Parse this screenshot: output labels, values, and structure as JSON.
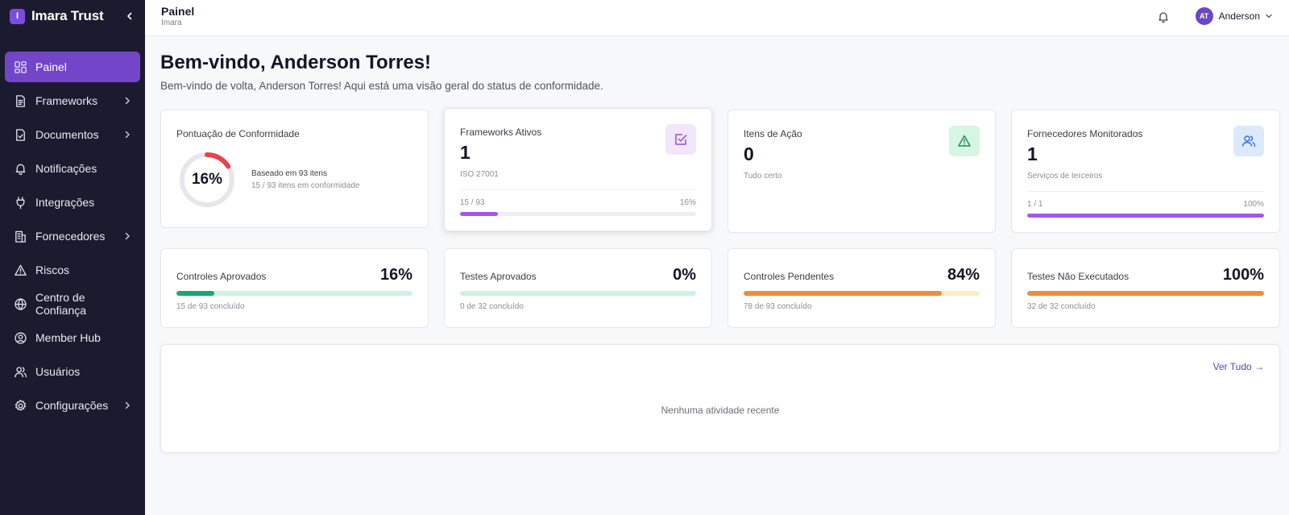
{
  "app": {
    "logo_letter": "I",
    "name": "Imara Trust"
  },
  "sidebar": {
    "items": [
      {
        "label": "Painel",
        "icon": "dashboard-icon",
        "active": true,
        "has_submenu": false
      },
      {
        "label": "Frameworks",
        "icon": "file-text-icon",
        "active": false,
        "has_submenu": true
      },
      {
        "label": "Documentos",
        "icon": "file-check-icon",
        "active": false,
        "has_submenu": true
      },
      {
        "label": "Notificações",
        "icon": "bell-icon",
        "active": false,
        "has_submenu": false
      },
      {
        "label": "Integrações",
        "icon": "plug-icon",
        "active": false,
        "has_submenu": false
      },
      {
        "label": "Fornecedores",
        "icon": "building-icon",
        "active": false,
        "has_submenu": true
      },
      {
        "label": "Riscos",
        "icon": "alert-triangle-icon",
        "active": false,
        "has_submenu": false
      },
      {
        "label": "Centro de Confiança",
        "icon": "globe-icon",
        "active": false,
        "has_submenu": false
      },
      {
        "label": "Member Hub",
        "icon": "user-circle-icon",
        "active": false,
        "has_submenu": false
      },
      {
        "label": "Usuários",
        "icon": "users-icon",
        "active": false,
        "has_submenu": false
      },
      {
        "label": "Configurações",
        "icon": "gear-icon",
        "active": false,
        "has_submenu": true
      }
    ]
  },
  "header": {
    "title": "Painel",
    "subtitle": "Imara",
    "user_initials": "AT",
    "user_name": "Anderson"
  },
  "welcome": {
    "title": "Bem-vindo, Anderson Torres!",
    "subtitle": "Bem-vindo de volta, Anderson Torres! Aqui está uma visão geral do status de conformidade."
  },
  "score_card": {
    "label": "Pontuação de Conformidade",
    "percent_text": "16%",
    "percent": 16,
    "note1": "Baseado em 93 itens",
    "note2": "15 / 93 itens em conformidade",
    "ring_color": "#e8424b"
  },
  "frameworks_card": {
    "label": "Frameworks Ativos",
    "value": "1",
    "note": "ISO 27001",
    "progress_left": "15 / 93",
    "progress_right": "16%",
    "progress": 16,
    "icon": "check-square-icon",
    "color": "#a855e8",
    "icon_bg": "#f1e6fb"
  },
  "actions_card": {
    "label": "Itens de Ação",
    "value": "0",
    "note": "Tudo certo",
    "icon": "alert-triangle-icon",
    "icon_bg": "#d6f5e3",
    "icon_color": "#1f8a55"
  },
  "vendors_card": {
    "label": "Fornecedores Monitorados",
    "value": "1",
    "note": "Serviços de terceiros",
    "progress_left": "1 / 1",
    "progress_right": "100%",
    "progress": 100,
    "icon": "users-icon",
    "icon_bg": "#dbe9fb",
    "icon_color": "#2f6fd6",
    "color": "#a855e8"
  },
  "stats": [
    {
      "label": "Controles Aprovados",
      "value": "16%",
      "note": "15 de 93 concluído",
      "progress": 16,
      "fill_color": "#16a870",
      "track_color": "#cdf3df"
    },
    {
      "label": "Testes Aprovados",
      "value": "0%",
      "note": "0 de 32 concluído",
      "progress": 0,
      "fill_color": "#16a870",
      "track_color": "#cdf3df"
    },
    {
      "label": "Controles Pendentes",
      "value": "84%",
      "note": "78 de 93 concluído",
      "progress": 84,
      "fill_color": "#f08c3a",
      "track_color": "#fbedc4"
    },
    {
      "label": "Testes Não Executados",
      "value": "100%",
      "note": "32 de 32 concluído",
      "progress": 100,
      "fill_color": "#f08c3a",
      "track_color": "#fbedc4"
    }
  ],
  "activity": {
    "see_all": "Ver Tudo →",
    "empty": "Nenhuma atividade recente"
  }
}
